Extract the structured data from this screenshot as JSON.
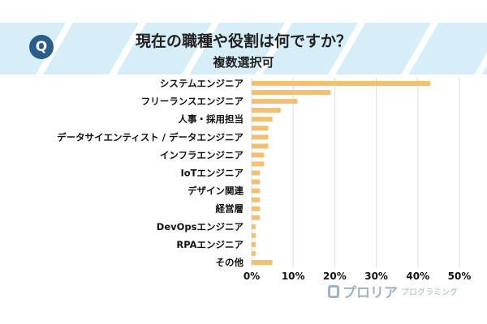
{
  "title": "現在の職種や役割は何ですか？",
  "subtitle": "複数選択可",
  "logo": {
    "main": "プロリア",
    "sub": "プログラミング"
  },
  "colors": {
    "bar": "#f3c071",
    "banner": "#d6eef8",
    "icon": "#2a5d8c",
    "grid": "#dddddd"
  },
  "icon": {
    "name": "q-circle-icon",
    "letter": "Q"
  },
  "chart_data": {
    "type": "bar",
    "orientation": "horizontal",
    "categories": [
      "システムエンジニア",
      "",
      "フリーランスエンジニア",
      "",
      "人事・採用担当",
      "",
      "データサイエンティスト / データエンジニア",
      "",
      "インフラエンジニア",
      "",
      "IoTエンジニア",
      "",
      "デザイン関連",
      "",
      "経営層",
      "",
      "DevOpsエンジニア",
      "",
      "RPAエンジニア",
      "",
      "その他"
    ],
    "values": [
      43,
      19,
      11,
      7,
      5,
      4,
      4,
      4,
      3,
      3,
      2,
      2,
      2,
      2,
      2,
      2,
      1,
      1,
      1,
      1,
      5
    ],
    "xlim": [
      0,
      50
    ],
    "xticks": [
      "0%",
      "10%",
      "20%",
      "30%",
      "40%",
      "50%"
    ],
    "grid": true,
    "xlabel": "",
    "ylabel": ""
  }
}
